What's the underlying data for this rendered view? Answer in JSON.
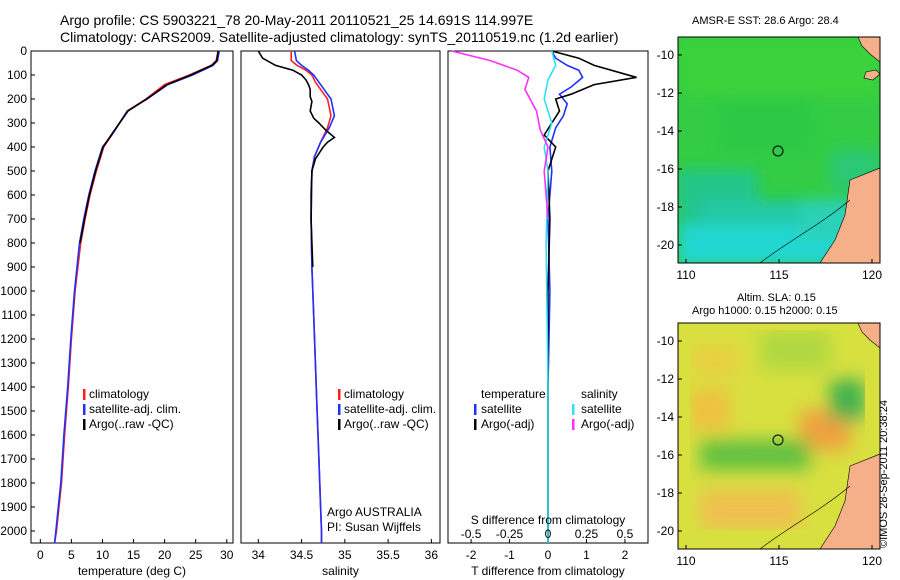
{
  "header": {
    "line1": "Argo profile: CS 5903221_78 20-May-2011 20110521_25 14.691S 114.997E",
    "line2": "Climatology: CARS2009. Satellite-adjusted climatology: synTS_20110519.nc (1.2d earlier)"
  },
  "colors": {
    "climatology": "#ff2020",
    "satellite": "#2030ff",
    "argo": "#000000",
    "sal_satellite": "#30e0f0",
    "sal_argo": "#ff30ff"
  },
  "chart_data": [
    {
      "type": "line",
      "xlabel": "temperature (deg C)",
      "ylim": [
        2050,
        0
      ],
      "xlim": [
        -1.5,
        31
      ],
      "xticks": [
        0,
        5,
        10,
        15,
        20,
        25,
        30
      ],
      "yticks": [
        0,
        100,
        200,
        300,
        400,
        500,
        600,
        700,
        800,
        900,
        1000,
        1100,
        1200,
        1300,
        1400,
        1500,
        1600,
        1700,
        1800,
        1900,
        2000
      ],
      "legend": [
        "climatology",
        "satellite-adj. clim.",
        "Argo(..raw -QC)"
      ],
      "series": [
        {
          "name": "climatology",
          "color": "#ff2020",
          "x": [
            28.6,
            28.3,
            27.5,
            24,
            20,
            17,
            14,
            11.5,
            10.2,
            9,
            8,
            7.2,
            6.5,
            5.6,
            5,
            4.5,
            3.9,
            3.4,
            3,
            2.6,
            2.3
          ],
          "y": [
            0,
            40,
            60,
            100,
            140,
            200,
            250,
            350,
            400,
            500,
            600,
            700,
            800,
            1000,
            1200,
            1400,
            1600,
            1800,
            1900,
            2000,
            2050
          ]
        },
        {
          "name": "satellite-adj. clim.",
          "color": "#2030ff",
          "x": [
            28.8,
            28.5,
            27.8,
            24.5,
            20.5,
            17.2,
            14,
            11.5,
            10,
            8.8,
            7.8,
            7,
            6.3,
            5.5,
            4.9,
            4.4,
            3.8,
            3.3,
            2.9,
            2.5,
            2.3
          ],
          "y": [
            0,
            40,
            60,
            100,
            140,
            200,
            250,
            350,
            400,
            500,
            600,
            700,
            800,
            1000,
            1200,
            1400,
            1600,
            1800,
            1900,
            2000,
            2050
          ]
        },
        {
          "name": "Argo(..raw -QC)",
          "color": "#000000",
          "x": [
            28.6,
            28.4,
            27.6,
            24.2,
            20.4,
            17.1,
            14.1,
            11.4,
            10.1,
            8.9,
            7.9,
            7.1,
            6.4
          ],
          "y": [
            0,
            40,
            60,
            100,
            140,
            200,
            250,
            350,
            400,
            500,
            600,
            700,
            800
          ]
        }
      ]
    },
    {
      "type": "line",
      "xlabel": "salinity",
      "ylim": [
        2050,
        0
      ],
      "xlim": [
        33.8,
        36.1
      ],
      "xticks": [
        34,
        34.5,
        35,
        35.5,
        36
      ],
      "legend": [
        "climatology",
        "satellite-adj. clim.",
        "Argo(..raw -QC)"
      ],
      "annotation": [
        "Argo AUSTRALIA",
        "PI: Susan Wijffels"
      ],
      "series": [
        {
          "name": "climatology",
          "color": "#ff2020",
          "x": [
            34.38,
            34.38,
            34.45,
            34.55,
            34.62,
            34.66,
            34.74,
            34.8,
            34.84,
            34.8,
            34.72,
            34.65,
            34.62,
            34.61,
            34.62,
            34.64,
            34.66,
            34.68,
            34.7,
            34.72,
            34.73,
            34.73
          ],
          "y": [
            0,
            40,
            60,
            80,
            100,
            130,
            170,
            200,
            270,
            320,
            380,
            440,
            500,
            700,
            900,
            1100,
            1300,
            1500,
            1700,
            1900,
            2000,
            2050
          ]
        },
        {
          "name": "satellite-adj. clim.",
          "color": "#2030ff",
          "x": [
            34.42,
            34.44,
            34.5,
            34.58,
            34.64,
            34.7,
            34.78,
            34.84,
            34.88,
            34.82,
            34.72,
            34.65,
            34.62,
            34.61,
            34.62,
            34.64,
            34.66,
            34.68,
            34.7,
            34.72,
            34.73,
            34.73
          ],
          "y": [
            0,
            40,
            60,
            80,
            100,
            130,
            170,
            200,
            270,
            320,
            380,
            440,
            500,
            700,
            900,
            1100,
            1300,
            1500,
            1700,
            1900,
            2000,
            2050
          ]
        },
        {
          "name": "Argo(..raw -QC)",
          "color": "#000000",
          "x": [
            34.0,
            34.05,
            34.2,
            34.4,
            34.5,
            34.55,
            34.58,
            34.6,
            34.6,
            34.62,
            34.6,
            34.64,
            34.7,
            34.78,
            34.88,
            34.8,
            34.75,
            34.66,
            34.62,
            34.61,
            34.61,
            34.62,
            34.63
          ],
          "y": [
            0,
            30,
            60,
            80,
            100,
            120,
            140,
            160,
            190,
            210,
            250,
            280,
            300,
            330,
            360,
            380,
            400,
            450,
            500,
            600,
            700,
            800,
            900
          ]
        }
      ]
    },
    {
      "type": "line",
      "xlabel": "T difference from climatology",
      "xlabel_top": "S difference from climatology",
      "ylim": [
        2050,
        0
      ],
      "xlim": [
        -2.6,
        2.6
      ],
      "xticks": [
        -2,
        -1,
        0,
        1,
        2
      ],
      "xticks_top": [
        "-0.5",
        "-0.25",
        "0",
        "0.25",
        "0.5"
      ],
      "legend_t": [
        "temperature",
        "satellite",
        "Argo(-adj)"
      ],
      "legend_s": [
        "salinity",
        "satellite",
        "Argo(-adj)"
      ],
      "series": [
        {
          "name": "satellite",
          "color": "#2030ff",
          "x": [
            0.1,
            0.2,
            0.5,
            0.8,
            0.9,
            0.6,
            0.3,
            0.5,
            0.4,
            0.2,
            0.05,
            0.1,
            0,
            0.05,
            0,
            0,
            0
          ],
          "y": [
            0,
            30,
            60,
            80,
            110,
            150,
            180,
            220,
            270,
            320,
            400,
            500,
            700,
            1000,
            1400,
            1800,
            2050
          ]
        },
        {
          "name": "Argo(-adj)",
          "color": "#000000",
          "x": [
            0.1,
            0.8,
            1.2,
            2.3,
            1.2,
            0.6,
            0.2,
            0.3,
            0.1,
            -0.1,
            0.2,
            0,
            0.05,
            0,
            0,
            0
          ],
          "y": [
            0,
            30,
            60,
            110,
            140,
            180,
            200,
            250,
            300,
            350,
            400,
            500,
            700,
            1000,
            1500,
            2050
          ]
        },
        {
          "name": "satellite",
          "color": "#30e0f0",
          "x": [
            0.1,
            0.2,
            0,
            -0.1,
            0.1,
            -0.1,
            0,
            -0.05,
            0,
            0
          ],
          "y": [
            0,
            60,
            120,
            200,
            300,
            400,
            500,
            800,
            1400,
            2050
          ]
        },
        {
          "name": "Argo(-adj)",
          "color": "#ff30ff",
          "x": [
            -2.5,
            -1.5,
            -0.8,
            -0.5,
            -0.6,
            -0.3,
            -0.2,
            0,
            -0.1,
            0
          ],
          "y": [
            0,
            40,
            80,
            110,
            160,
            250,
            330,
            400,
            500,
            700
          ]
        }
      ]
    }
  ],
  "map1": {
    "title": "AMSR-E SST: 28.6 Argo: 28.4",
    "xticks": [
      "110",
      "115",
      "120"
    ],
    "yticks": [
      "-10",
      "-12",
      "-14",
      "-16",
      "-18",
      "-20"
    ]
  },
  "map2": {
    "title_line1": "Altim. SLA: 0.15",
    "title_line2": "Argo h1000: 0.15 h2000: 0.15",
    "xticks": [
      "110",
      "115",
      "120"
    ],
    "yticks": [
      "-10",
      "-12",
      "-14",
      "-16",
      "-18",
      "-20"
    ]
  },
  "watermark": "©IMOS 28-Sep-2011 20:38:24"
}
